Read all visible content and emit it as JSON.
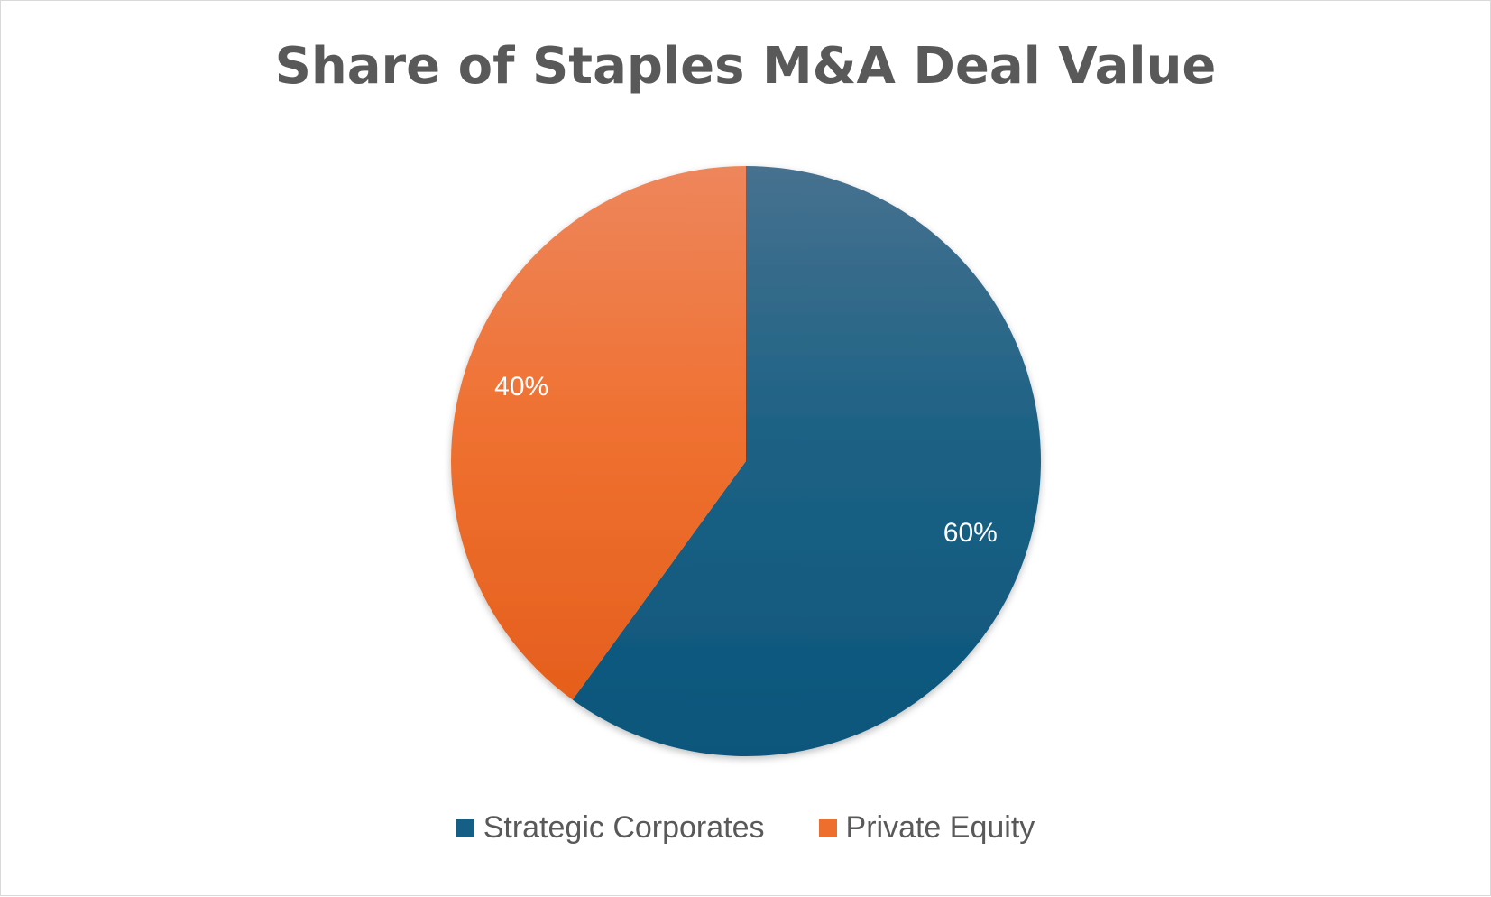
{
  "chart_data": {
    "type": "pie",
    "title": "Share of Staples M&A Deal Value",
    "categories": [
      "Strategic Corporates",
      "Private Equity"
    ],
    "values": [
      60,
      40
    ],
    "data_labels": [
      "60%",
      "40%"
    ],
    "colors": [
      "#155f86",
      "#ee6f2d"
    ],
    "legend_position": "bottom"
  }
}
